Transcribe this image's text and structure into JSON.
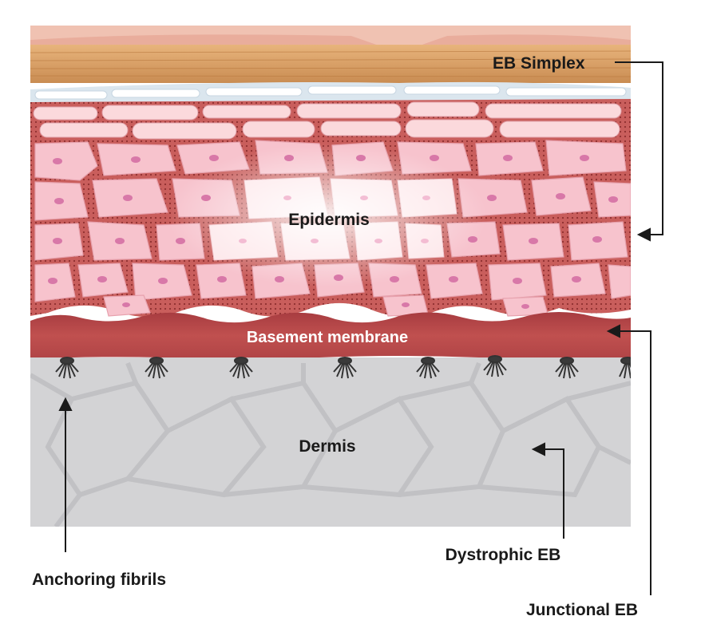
{
  "labels": {
    "eb_simplex": "EB Simplex",
    "epidermis": "Epidermis",
    "basement_membrane": "Basement membrane",
    "dermis": "Dermis",
    "dystrophic_eb": "Dystrophic EB",
    "anchoring_fibrils": "Anchoring fibrils",
    "junctional_eb": "Junctional EB"
  },
  "colors": {
    "label_text": "#1a1a1a",
    "arrow": "#1a1a1a",
    "top_skin": "#f2c4b4",
    "stratum_corneum": "#d9a06a",
    "clear_layer": "#d9e8f2",
    "cell_fill": "#f7c6cf",
    "cell_nucleus": "#d77aa6",
    "intercellular": "#c2585a",
    "basement_membrane": "#b8484c",
    "basement_label": "#ffffff",
    "dermis": "#d2d2d4",
    "dermis_fibers": "#c0c0c2",
    "anchoring_fibrils": "#3a3a3a"
  }
}
